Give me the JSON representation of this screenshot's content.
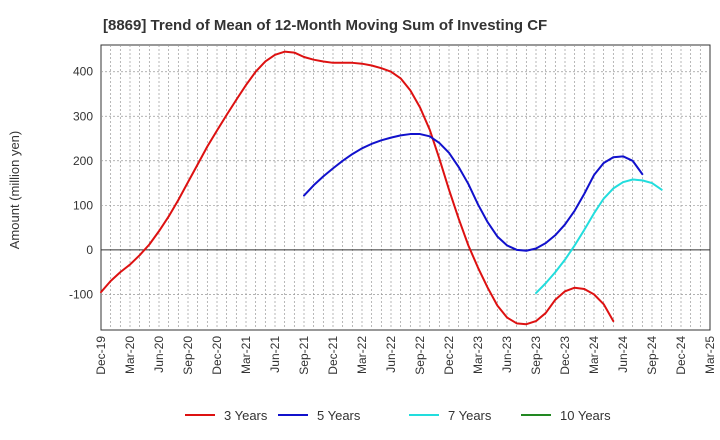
{
  "chart_data": {
    "type": "line",
    "title": "[8869]  Trend of Mean of 12-Month Moving Sum of Investing CF",
    "xlabel": "",
    "ylabel": "Amount (million yen)",
    "ylim": [
      -180,
      460
    ],
    "yticks": [
      -100,
      0,
      100,
      200,
      300,
      400
    ],
    "x_tick_labels": [
      "Dec-19",
      "Mar-20",
      "Jun-20",
      "Sep-20",
      "Dec-20",
      "Mar-21",
      "Jun-21",
      "Sep-21",
      "Dec-21",
      "Mar-22",
      "Jun-22",
      "Sep-22",
      "Dec-22",
      "Mar-23",
      "Jun-23",
      "Sep-23",
      "Dec-23",
      "Mar-24",
      "Jun-24",
      "Sep-24",
      "Dec-24",
      "Mar-25"
    ],
    "x_range_months": [
      0,
      63
    ],
    "grid": true,
    "legend_position": "bottom-center",
    "series": [
      {
        "name": "3 Years",
        "color": "#dd1111",
        "points": [
          [
            0,
            -95
          ],
          [
            1,
            -70
          ],
          [
            2,
            -50
          ],
          [
            3,
            -33
          ],
          [
            4,
            -12
          ],
          [
            5,
            12
          ],
          [
            6,
            42
          ],
          [
            7,
            75
          ],
          [
            8,
            112
          ],
          [
            9,
            152
          ],
          [
            10,
            192
          ],
          [
            11,
            232
          ],
          [
            12,
            268
          ],
          [
            13,
            303
          ],
          [
            14,
            337
          ],
          [
            15,
            370
          ],
          [
            16,
            400
          ],
          [
            17,
            423
          ],
          [
            18,
            438
          ],
          [
            19,
            445
          ],
          [
            20,
            443
          ],
          [
            21,
            433
          ],
          [
            22,
            427
          ],
          [
            23,
            423
          ],
          [
            24,
            420
          ],
          [
            25,
            420
          ],
          [
            26,
            420
          ],
          [
            27,
            418
          ],
          [
            28,
            414
          ],
          [
            29,
            408
          ],
          [
            30,
            400
          ],
          [
            31,
            385
          ],
          [
            32,
            358
          ],
          [
            33,
            320
          ],
          [
            34,
            270
          ],
          [
            35,
            205
          ],
          [
            36,
            135
          ],
          [
            37,
            70
          ],
          [
            38,
            10
          ],
          [
            39,
            -40
          ],
          [
            40,
            -85
          ],
          [
            41,
            -125
          ],
          [
            42,
            -152
          ],
          [
            43,
            -165
          ],
          [
            44,
            -167
          ],
          [
            45,
            -160
          ],
          [
            46,
            -142
          ],
          [
            47,
            -112
          ],
          [
            48,
            -93
          ],
          [
            49,
            -85
          ],
          [
            50,
            -88
          ],
          [
            51,
            -100
          ],
          [
            52,
            -122
          ],
          [
            53,
            -160
          ]
        ]
      },
      {
        "name": "5 Years",
        "color": "#1111cc",
        "points": [
          [
            21,
            122
          ],
          [
            22,
            145
          ],
          [
            23,
            165
          ],
          [
            24,
            183
          ],
          [
            25,
            200
          ],
          [
            26,
            215
          ],
          [
            27,
            228
          ],
          [
            28,
            238
          ],
          [
            29,
            246
          ],
          [
            30,
            252
          ],
          [
            31,
            257
          ],
          [
            32,
            260
          ],
          [
            33,
            260
          ],
          [
            34,
            255
          ],
          [
            35,
            240
          ],
          [
            36,
            218
          ],
          [
            37,
            186
          ],
          [
            38,
            148
          ],
          [
            39,
            102
          ],
          [
            40,
            62
          ],
          [
            41,
            30
          ],
          [
            42,
            10
          ],
          [
            43,
            0
          ],
          [
            44,
            -2
          ],
          [
            45,
            3
          ],
          [
            46,
            15
          ],
          [
            47,
            33
          ],
          [
            48,
            57
          ],
          [
            49,
            88
          ],
          [
            50,
            126
          ],
          [
            51,
            168
          ],
          [
            52,
            195
          ],
          [
            53,
            208
          ],
          [
            54,
            210
          ],
          [
            55,
            200
          ],
          [
            56,
            170
          ]
        ]
      },
      {
        "name": "7 Years",
        "color": "#22dddd",
        "points": [
          [
            45,
            -97
          ],
          [
            46,
            -75
          ],
          [
            47,
            -50
          ],
          [
            48,
            -22
          ],
          [
            49,
            10
          ],
          [
            50,
            45
          ],
          [
            51,
            82
          ],
          [
            52,
            115
          ],
          [
            53,
            138
          ],
          [
            54,
            152
          ],
          [
            55,
            158
          ],
          [
            56,
            156
          ],
          [
            57,
            150
          ],
          [
            58,
            135
          ]
        ]
      },
      {
        "name": "10 Years",
        "color": "#228822",
        "points": []
      }
    ]
  }
}
